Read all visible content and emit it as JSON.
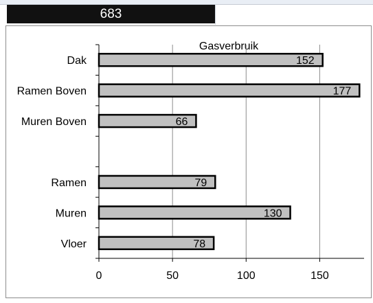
{
  "spreadsheet": {
    "active_cell_value": "683"
  },
  "chart_data": {
    "type": "bar",
    "orientation": "horizontal",
    "title": "Gasverbruik",
    "categories": [
      "Dak",
      "Ramen Boven",
      "Muren Boven",
      "",
      "Ramen",
      "Muren",
      "Vloer"
    ],
    "values": [
      152,
      177,
      66,
      null,
      79,
      130,
      78
    ],
    "data_labels": [
      "152",
      "177",
      "66",
      "",
      "79",
      "130",
      "78"
    ],
    "xlim": [
      0,
      175
    ],
    "x_ticks": [
      0,
      50,
      100,
      150
    ],
    "x_tick_labels": [
      "0",
      "50",
      "100",
      "150"
    ],
    "grid": true,
    "legend": "none",
    "colors": {
      "bar_fill": "#c0c0c0",
      "bar_stroke": "#000000",
      "grid": "#8c8c8c",
      "axis": "#000000"
    }
  }
}
